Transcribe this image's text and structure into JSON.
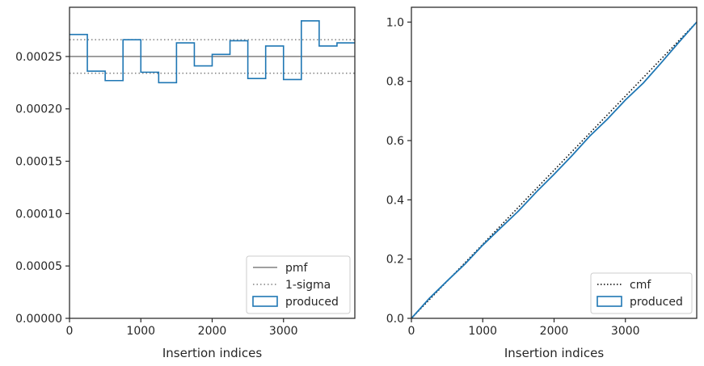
{
  "chart_data": [
    {
      "type": "line",
      "xlabel": "Insertion indices",
      "ylabel": "",
      "xlim": [
        0,
        4000
      ],
      "ylim": [
        0,
        0.000297
      ],
      "xticks": [
        "0",
        "1000",
        "2000",
        "3000"
      ],
      "yticks": [
        "0.00000",
        "0.00005",
        "0.00010",
        "0.00015",
        "0.00020",
        "0.00025"
      ],
      "grid": false,
      "legend_position": "bottom-right",
      "legend": [
        "pmf",
        "1-sigma",
        "produced"
      ],
      "pmf": 0.00025,
      "sigma_band": [
        0.000234,
        0.000266
      ],
      "series": [
        {
          "name": "produced",
          "style": "step-histogram",
          "bin_edges": [
            0,
            250,
            500,
            750,
            1000,
            1250,
            1500,
            1750,
            2000,
            2250,
            2500,
            2750,
            3000,
            3250,
            3500,
            3750,
            4000
          ],
          "values": [
            0.000271,
            0.000236,
            0.000227,
            0.000266,
            0.000235,
            0.000225,
            0.000263,
            0.000241,
            0.000252,
            0.000265,
            0.000229,
            0.00026,
            0.000228,
            0.000284,
            0.00026,
            0.000263
          ]
        }
      ],
      "colors": {
        "pmf": "#808080",
        "sigma": "#808080",
        "produced": "#1f77b4"
      }
    },
    {
      "type": "line",
      "xlabel": "Insertion indices",
      "ylabel": "",
      "xlim": [
        0,
        4000
      ],
      "ylim": [
        0,
        1.05
      ],
      "xticks": [
        "0",
        "1000",
        "2000",
        "3000"
      ],
      "yticks": [
        "0.0",
        "0.2",
        "0.4",
        "0.6",
        "0.8",
        "1.0"
      ],
      "grid": false,
      "legend_position": "bottom-right",
      "legend": [
        "cmf",
        "produced"
      ],
      "series": [
        {
          "name": "cmf",
          "style": "dotted",
          "x": [
            0,
            4000
          ],
          "y": [
            0,
            1.0
          ]
        },
        {
          "name": "produced",
          "style": "step",
          "x": [
            0,
            250,
            500,
            750,
            1000,
            1250,
            1500,
            1750,
            2000,
            2250,
            2500,
            2750,
            3000,
            3250,
            3500,
            3750,
            4000
          ],
          "y": [
            0,
            0.067,
            0.126,
            0.183,
            0.247,
            0.305,
            0.362,
            0.426,
            0.486,
            0.549,
            0.615,
            0.673,
            0.737,
            0.794,
            0.862,
            0.932,
            1.0
          ]
        }
      ],
      "colors": {
        "cmf": "#000000",
        "produced": "#1f77b4"
      }
    }
  ]
}
